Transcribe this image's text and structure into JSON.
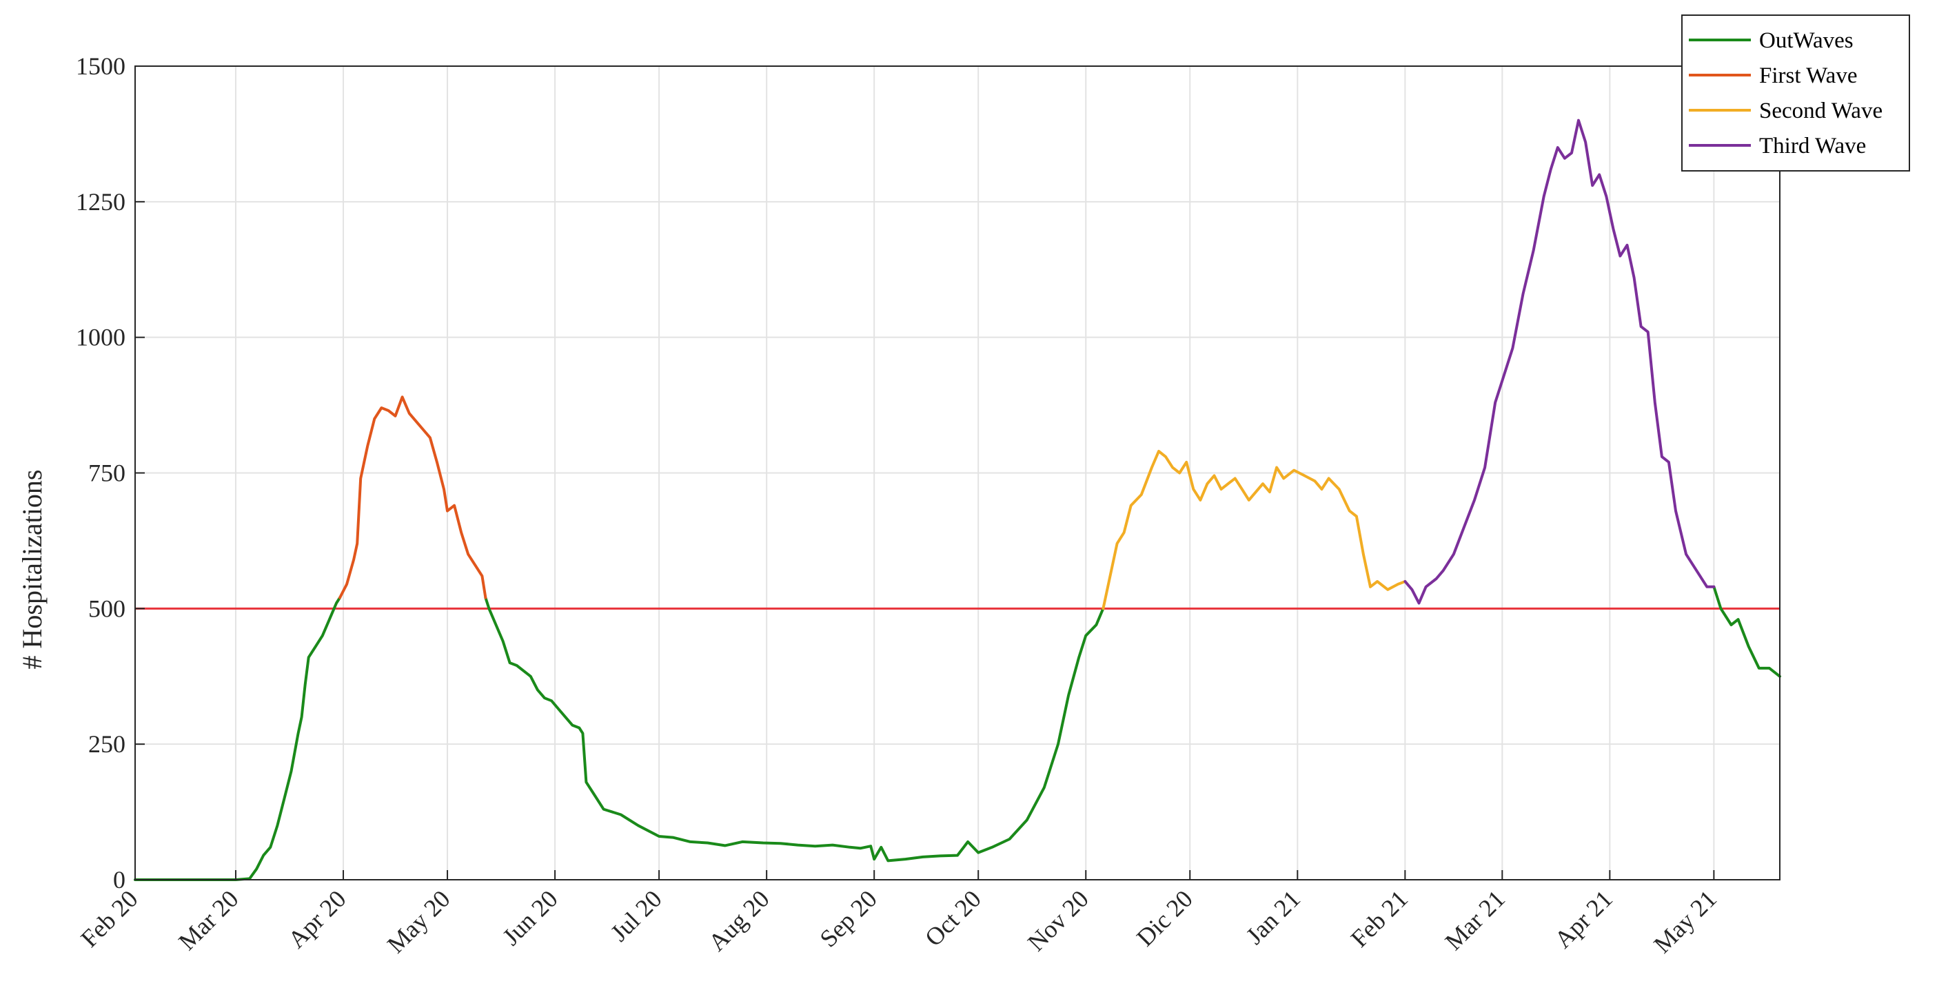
{
  "chart_data": {
    "type": "line",
    "title": "",
    "xlabel": "",
    "ylabel": "# Hospitalizations",
    "ylim": [
      0,
      1500
    ],
    "yticks": [
      0,
      250,
      500,
      750,
      1000,
      1250,
      1500
    ],
    "xlim": [
      "2020-02-01",
      "2021-05-20"
    ],
    "xticks": [
      {
        "date": "2020-02-01",
        "label": "Feb 20"
      },
      {
        "date": "2020-03-01",
        "label": "Mar 20"
      },
      {
        "date": "2020-04-01",
        "label": "Apr 20"
      },
      {
        "date": "2020-05-01",
        "label": "May 20"
      },
      {
        "date": "2020-06-01",
        "label": "Jun 20"
      },
      {
        "date": "2020-07-01",
        "label": "Jul 20"
      },
      {
        "date": "2020-08-01",
        "label": "Aug 20"
      },
      {
        "date": "2020-09-01",
        "label": "Sep 20"
      },
      {
        "date": "2020-10-01",
        "label": "Oct 20"
      },
      {
        "date": "2020-11-01",
        "label": "Nov 20"
      },
      {
        "date": "2020-12-01",
        "label": "Dic 20"
      },
      {
        "date": "2021-01-01",
        "label": "Jan 21"
      },
      {
        "date": "2021-02-01",
        "label": "Feb 21"
      },
      {
        "date": "2021-03-01",
        "label": "Mar 21"
      },
      {
        "date": "2021-04-01",
        "label": "Apr 21"
      },
      {
        "date": "2021-05-01",
        "label": "May 21"
      }
    ],
    "grid": true,
    "legend_position": "top-right",
    "threshold": {
      "value": 500,
      "color": "#e8333a"
    },
    "series": [
      {
        "name": "OutWaves",
        "color": "#1a8a1a",
        "segments": [
          [
            [
              "2020-02-01",
              0
            ],
            [
              "2020-02-28",
              0
            ],
            [
              "2020-03-01",
              0
            ],
            [
              "2020-03-05",
              2
            ],
            [
              "2020-03-07",
              20
            ],
            [
              "2020-03-09",
              45
            ],
            [
              "2020-03-11",
              60
            ],
            [
              "2020-03-13",
              100
            ],
            [
              "2020-03-15",
              150
            ],
            [
              "2020-03-17",
              200
            ],
            [
              "2020-03-19",
              270
            ],
            [
              "2020-03-20",
              300
            ],
            [
              "2020-03-21",
              360
            ],
            [
              "2020-03-22",
              410
            ],
            [
              "2020-03-24",
              430
            ],
            [
              "2020-03-26",
              450
            ],
            [
              "2020-03-28",
              480
            ],
            [
              "2020-03-30",
              510
            ],
            [
              "2020-03-31",
              520
            ]
          ],
          [
            [
              "2020-05-12",
              520
            ],
            [
              "2020-05-13",
              500
            ],
            [
              "2020-05-15",
              470
            ],
            [
              "2020-05-17",
              440
            ],
            [
              "2020-05-19",
              400
            ],
            [
              "2020-05-21",
              395
            ],
            [
              "2020-05-23",
              385
            ],
            [
              "2020-05-25",
              375
            ],
            [
              "2020-05-27",
              350
            ],
            [
              "2020-05-29",
              335
            ],
            [
              "2020-05-31",
              330
            ],
            [
              "2020-06-02",
              315
            ],
            [
              "2020-06-04",
              300
            ],
            [
              "2020-06-06",
              285
            ],
            [
              "2020-06-08",
              280
            ],
            [
              "2020-06-09",
              270
            ],
            [
              "2020-06-10",
              180
            ],
            [
              "2020-06-12",
              160
            ],
            [
              "2020-06-15",
              130
            ],
            [
              "2020-06-20",
              120
            ],
            [
              "2020-06-25",
              100
            ],
            [
              "2020-07-01",
              80
            ],
            [
              "2020-07-05",
              78
            ],
            [
              "2020-07-10",
              70
            ],
            [
              "2020-07-15",
              68
            ],
            [
              "2020-07-20",
              63
            ],
            [
              "2020-07-25",
              70
            ],
            [
              "2020-07-31",
              68
            ],
            [
              "2020-08-05",
              67
            ],
            [
              "2020-08-10",
              64
            ],
            [
              "2020-08-15",
              62
            ],
            [
              "2020-08-20",
              64
            ],
            [
              "2020-08-25",
              60
            ],
            [
              "2020-08-28",
              58
            ],
            [
              "2020-08-31",
              62
            ],
            [
              "2020-09-01",
              38
            ],
            [
              "2020-09-03",
              60
            ],
            [
              "2020-09-05",
              35
            ],
            [
              "2020-09-10",
              38
            ],
            [
              "2020-09-15",
              42
            ],
            [
              "2020-09-20",
              44
            ],
            [
              "2020-09-25",
              45
            ],
            [
              "2020-09-28",
              70
            ],
            [
              "2020-10-01",
              50
            ],
            [
              "2020-10-05",
              60
            ],
            [
              "2020-10-10",
              75
            ],
            [
              "2020-10-15",
              110
            ],
            [
              "2020-10-20",
              170
            ],
            [
              "2020-10-24",
              250
            ],
            [
              "2020-10-27",
              340
            ],
            [
              "2020-10-30",
              410
            ],
            [
              "2020-11-01",
              450
            ],
            [
              "2020-11-04",
              470
            ],
            [
              "2020-11-06",
              500
            ]
          ],
          [
            [
              "2021-05-01",
              540
            ],
            [
              "2021-05-03",
              500
            ],
            [
              "2021-05-06",
              470
            ],
            [
              "2021-05-08",
              480
            ],
            [
              "2021-05-11",
              430
            ],
            [
              "2021-05-14",
              390
            ],
            [
              "2021-05-17",
              390
            ],
            [
              "2021-05-20",
              375
            ]
          ]
        ]
      },
      {
        "name": "First Wave",
        "color": "#e1561c",
        "segments": [
          [
            [
              "2020-03-31",
              520
            ],
            [
              "2020-04-02",
              545
            ],
            [
              "2020-04-04",
              590
            ],
            [
              "2020-04-05",
              620
            ],
            [
              "2020-04-06",
              740
            ],
            [
              "2020-04-08",
              800
            ],
            [
              "2020-04-10",
              850
            ],
            [
              "2020-04-12",
              870
            ],
            [
              "2020-04-14",
              865
            ],
            [
              "2020-04-16",
              855
            ],
            [
              "2020-04-18",
              890
            ],
            [
              "2020-04-20",
              860
            ],
            [
              "2020-04-22",
              845
            ],
            [
              "2020-04-24",
              830
            ],
            [
              "2020-04-26",
              815
            ],
            [
              "2020-04-28",
              770
            ],
            [
              "2020-04-30",
              720
            ],
            [
              "2020-05-01",
              680
            ],
            [
              "2020-05-03",
              690
            ],
            [
              "2020-05-05",
              640
            ],
            [
              "2020-05-07",
              600
            ],
            [
              "2020-05-09",
              580
            ],
            [
              "2020-05-11",
              560
            ],
            [
              "2020-05-12",
              520
            ]
          ]
        ]
      },
      {
        "name": "Second Wave",
        "color": "#f2ad24",
        "segments": [
          [
            [
              "2020-11-06",
              500
            ],
            [
              "2020-11-08",
              560
            ],
            [
              "2020-11-10",
              620
            ],
            [
              "2020-11-12",
              640
            ],
            [
              "2020-11-14",
              690
            ],
            [
              "2020-11-17",
              710
            ],
            [
              "2020-11-20",
              760
            ],
            [
              "2020-11-22",
              790
            ],
            [
              "2020-11-24",
              780
            ],
            [
              "2020-11-26",
              760
            ],
            [
              "2020-11-28",
              750
            ],
            [
              "2020-11-30",
              770
            ],
            [
              "2020-12-02",
              720
            ],
            [
              "2020-12-04",
              700
            ],
            [
              "2020-12-06",
              730
            ],
            [
              "2020-12-08",
              745
            ],
            [
              "2020-12-10",
              720
            ],
            [
              "2020-12-12",
              730
            ],
            [
              "2020-12-14",
              740
            ],
            [
              "2020-12-16",
              720
            ],
            [
              "2020-12-18",
              700
            ],
            [
              "2020-12-20",
              715
            ],
            [
              "2020-12-22",
              730
            ],
            [
              "2020-12-24",
              715
            ],
            [
              "2020-12-26",
              760
            ],
            [
              "2020-12-28",
              740
            ],
            [
              "2020-12-31",
              755
            ],
            [
              "2021-01-03",
              745
            ],
            [
              "2021-01-06",
              735
            ],
            [
              "2021-01-08",
              720
            ],
            [
              "2021-01-10",
              740
            ],
            [
              "2021-01-13",
              720
            ],
            [
              "2021-01-16",
              680
            ],
            [
              "2021-01-18",
              670
            ],
            [
              "2021-01-20",
              600
            ],
            [
              "2021-01-22",
              540
            ],
            [
              "2021-01-24",
              550
            ],
            [
              "2021-01-27",
              535
            ],
            [
              "2021-01-30",
              545
            ],
            [
              "2021-02-01",
              550
            ]
          ]
        ]
      },
      {
        "name": "Third Wave",
        "color": "#7b2f9a",
        "segments": [
          [
            [
              "2021-02-01",
              550
            ],
            [
              "2021-02-03",
              535
            ],
            [
              "2021-02-05",
              510
            ],
            [
              "2021-02-07",
              540
            ],
            [
              "2021-02-10",
              555
            ],
            [
              "2021-02-12",
              570
            ],
            [
              "2021-02-15",
              600
            ],
            [
              "2021-02-18",
              650
            ],
            [
              "2021-02-21",
              700
            ],
            [
              "2021-02-24",
              760
            ],
            [
              "2021-02-27",
              880
            ],
            [
              "2021-03-01",
              920
            ],
            [
              "2021-03-04",
              980
            ],
            [
              "2021-03-07",
              1080
            ],
            [
              "2021-03-10",
              1160
            ],
            [
              "2021-03-13",
              1260
            ],
            [
              "2021-03-15",
              1310
            ],
            [
              "2021-03-17",
              1350
            ],
            [
              "2021-03-19",
              1330
            ],
            [
              "2021-03-21",
              1340
            ],
            [
              "2021-03-23",
              1400
            ],
            [
              "2021-03-25",
              1360
            ],
            [
              "2021-03-27",
              1280
            ],
            [
              "2021-03-29",
              1300
            ],
            [
              "2021-03-31",
              1260
            ],
            [
              "2021-04-02",
              1200
            ],
            [
              "2021-04-04",
              1150
            ],
            [
              "2021-04-06",
              1170
            ],
            [
              "2021-04-08",
              1110
            ],
            [
              "2021-04-10",
              1020
            ],
            [
              "2021-04-12",
              1010
            ],
            [
              "2021-04-14",
              880
            ],
            [
              "2021-04-16",
              780
            ],
            [
              "2021-04-18",
              770
            ],
            [
              "2021-04-20",
              680
            ],
            [
              "2021-04-23",
              600
            ],
            [
              "2021-04-26",
              570
            ],
            [
              "2021-04-29",
              540
            ],
            [
              "2021-05-01",
              540
            ]
          ]
        ]
      }
    ]
  }
}
